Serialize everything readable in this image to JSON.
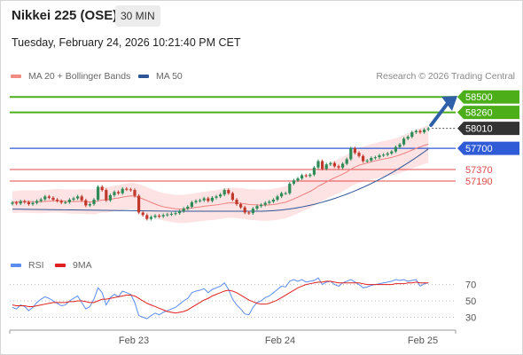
{
  "header": {
    "title": "Nikkei 225 (OSE)",
    "interval": "30 MIN",
    "datetime": "Tuesday, February 24, 2026 10:21:40 PM CET"
  },
  "legend": {
    "items": [
      {
        "label": "MA 20 + Bollinger Bands",
        "color": "#f28b82"
      },
      {
        "label": "MA 50",
        "color": "#2f5597"
      }
    ],
    "copyright": "Research © 2026 Trading Central"
  },
  "rsi_legend": {
    "items": [
      {
        "label": "RSI",
        "color": "#5b8def"
      },
      {
        "label": "9MA",
        "color": "#e02020"
      }
    ]
  },
  "colors": {
    "up_candle": "#2e8b57",
    "down_candle": "#c0392b",
    "resistance": "#4caf1a",
    "pivot": "#2f5bd6",
    "support": "#e24a4a",
    "bollinger_fill": "#fde3e3",
    "ma20": "#f08080",
    "ma50": "#2f5597",
    "arrow": "#2f5fa8",
    "last_price": "#333333"
  },
  "chart_data": [
    {
      "type": "candlestick",
      "ylim": [
        56250,
        58600
      ],
      "x_ticks": [
        "Feb 23",
        "Feb 24",
        "Feb 25"
      ],
      "levels": [
        {
          "value": 58500,
          "label": "58500",
          "kind": "resistance"
        },
        {
          "value": 58260,
          "label": "58260",
          "kind": "resistance"
        },
        {
          "value": 58010,
          "label": "58010",
          "kind": "last"
        },
        {
          "value": 57700,
          "label": "57700",
          "kind": "pivot"
        },
        {
          "value": 57370,
          "label": "57370",
          "kind": "support"
        },
        {
          "value": 57190,
          "label": "57190",
          "kind": "support"
        }
      ],
      "closes": [
        56855,
        56840,
        56875,
        56860,
        56830,
        56850,
        56880,
        56905,
        56950,
        56930,
        56900,
        56880,
        56855,
        56860,
        56900,
        56920,
        56950,
        56890,
        56810,
        56830,
        56900,
        57100,
        57050,
        56890,
        56970,
        57020,
        57000,
        57070,
        57060,
        57050,
        56960,
        56700,
        56660,
        56600,
        56630,
        56650,
        56640,
        56660,
        56670,
        56680,
        56690,
        56720,
        56760,
        56790,
        56860,
        56880,
        56890,
        56920,
        56880,
        56930,
        56950,
        56980,
        57050,
        57000,
        56900,
        56830,
        56780,
        56700,
        56690,
        56760,
        56800,
        56820,
        56850,
        56870,
        56900,
        56950,
        57000,
        57000,
        57150,
        57200,
        57230,
        57280,
        57270,
        57290,
        57400,
        57500,
        57380,
        57450,
        57470,
        57420,
        57400,
        57460,
        57530,
        57700,
        57630,
        57580,
        57500,
        57510,
        57550,
        57560,
        57590,
        57600,
        57620,
        57650,
        57720,
        57760,
        57850,
        57880,
        57950,
        57970,
        57950,
        57990,
        58010
      ],
      "ma20": [
        56860,
        56865,
        56870,
        56872,
        56870,
        56868,
        56866,
        56868,
        56872,
        56878,
        56882,
        56884,
        56880,
        56875,
        56872,
        56870,
        56872,
        56872,
        56870,
        56866,
        56866,
        56880,
        56895,
        56895,
        56905,
        56918,
        56925,
        56940,
        56950,
        56958,
        56955,
        56935,
        56912,
        56885,
        56858,
        56832,
        56808,
        56790,
        56778,
        56768,
        56758,
        56755,
        56756,
        56762,
        56770,
        56780,
        56788,
        56798,
        56805,
        56812,
        56818,
        56828,
        56840,
        56850,
        56852,
        56848,
        56842,
        56835,
        56826,
        56822,
        56818,
        56815,
        56815,
        56818,
        56824,
        56834,
        56848,
        56860,
        56885,
        56912,
        56940,
        56970,
        56998,
        57028,
        57065,
        57110,
        57140,
        57175,
        57210,
        57240,
        57268,
        57298,
        57330,
        57375,
        57408,
        57436,
        57455,
        57472,
        57490,
        57505,
        57520,
        57532,
        57544,
        57558,
        57576,
        57596,
        57620,
        57645,
        57672,
        57700,
        57722,
        57745,
        57765
      ],
      "rsi": [
        42,
        40,
        45,
        43,
        38,
        42,
        48,
        52,
        55,
        53,
        50,
        47,
        44,
        45,
        50,
        53,
        56,
        48,
        40,
        43,
        52,
        66,
        60,
        45,
        54,
        58,
        55,
        62,
        60,
        58,
        48,
        32,
        30,
        28,
        32,
        35,
        33,
        36,
        38,
        40,
        42,
        46,
        50,
        53,
        60,
        62,
        63,
        65,
        60,
        64,
        66,
        68,
        72,
        64,
        52,
        45,
        40,
        34,
        33,
        42,
        48,
        50,
        54,
        56,
        60,
        64,
        68,
        67,
        74,
        76,
        74,
        76,
        73,
        74,
        75,
        78,
        70,
        73,
        74,
        70,
        68,
        72,
        74,
        76,
        73,
        70,
        66,
        67,
        69,
        70,
        71,
        72,
        73,
        74,
        76,
        75,
        76,
        74,
        75,
        76,
        68,
        71,
        72
      ],
      "rsi_ma": [
        45,
        44,
        44,
        44,
        43,
        43,
        44,
        45,
        46,
        47,
        48,
        48,
        48,
        48,
        49,
        49,
        50,
        50,
        49,
        48,
        48,
        50,
        52,
        52,
        53,
        54,
        55,
        56,
        57,
        57,
        56,
        53,
        50,
        47,
        45,
        43,
        41,
        39,
        37,
        36,
        35,
        36,
        37,
        39,
        42,
        45,
        48,
        51,
        53,
        56,
        58,
        60,
        62,
        63,
        62,
        60,
        57,
        54,
        51,
        49,
        47,
        46,
        46,
        47,
        49,
        51,
        54,
        57,
        60,
        63,
        66,
        68,
        70,
        71,
        72,
        73,
        73,
        74,
        74,
        73,
        72,
        72,
        72,
        72,
        72,
        72,
        71,
        70,
        70,
        70,
        70,
        70,
        70,
        70,
        71,
        71,
        71,
        72,
        72,
        73,
        72,
        72,
        72
      ],
      "rsi_ticks": [
        70,
        50,
        30
      ]
    }
  ]
}
